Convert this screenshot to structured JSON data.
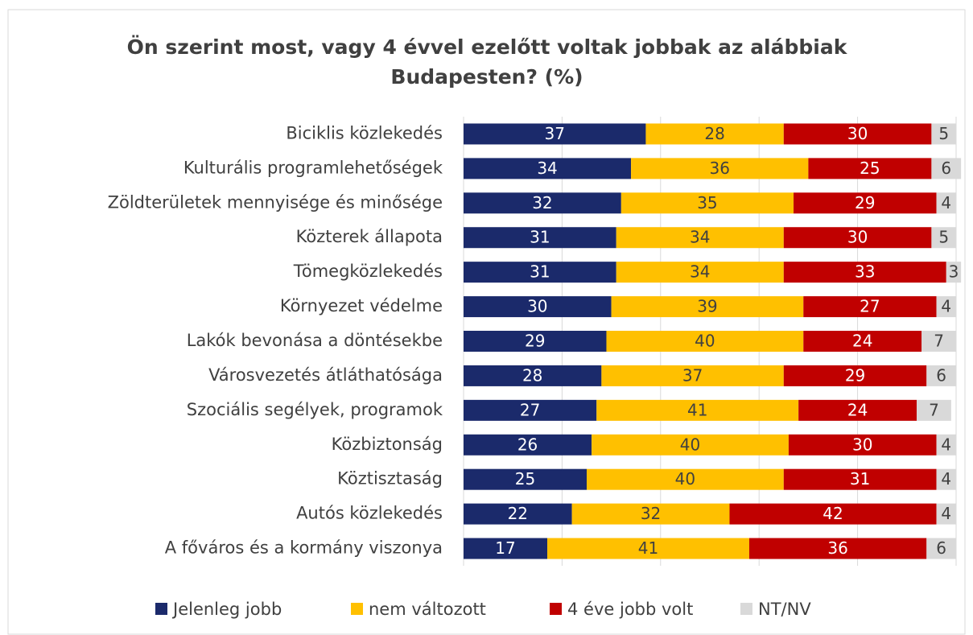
{
  "chart_data": {
    "type": "stacked-bar-horizontal",
    "title": [
      "Ön szerint most, vagy 4 évvel ezelőtt voltak jobbak az alábbiak",
      "Budapesten? (%)"
    ],
    "categories": [
      "Biciklis közlekedés",
      "Kulturális programlehetőségek",
      "Zöldterületek mennyisége és minősége",
      "Közterek állapota",
      "Tömegközlekedés",
      "Környezet védelme",
      "Lakók bevonása a döntésekbe",
      "Városvezetés átláthatósága",
      "Szociális segélyek, programok",
      "Közbiztonság",
      "Köztisztaság",
      "Autós közlekedés",
      "A főváros és a kormány viszonya"
    ],
    "series": [
      {
        "name": "Jelenleg jobb",
        "color": "#1b2a6b",
        "label_color": "#ffffff",
        "values": [
          37,
          34,
          32,
          31,
          31,
          30,
          29,
          28,
          27,
          26,
          25,
          22,
          17
        ]
      },
      {
        "name": "nem változott",
        "color": "#ffc000",
        "label_color": "#404040",
        "values": [
          28,
          36,
          35,
          34,
          34,
          39,
          40,
          37,
          41,
          40,
          40,
          32,
          41
        ]
      },
      {
        "name": "4 éve jobb volt",
        "color": "#c00000",
        "label_color": "#ffffff",
        "values": [
          30,
          25,
          29,
          30,
          33,
          27,
          24,
          29,
          24,
          30,
          31,
          42,
          36
        ]
      },
      {
        "name": "NT/NV",
        "color": "#d9d9d9",
        "label_color": "#404040",
        "values": [
          5,
          6,
          4,
          5,
          3,
          4,
          7,
          6,
          7,
          4,
          4,
          4,
          6
        ]
      }
    ],
    "xlim": [
      0,
      100
    ],
    "xticks": [
      0,
      20,
      40,
      60,
      80,
      100
    ],
    "grid": true,
    "legend": "bottom"
  }
}
